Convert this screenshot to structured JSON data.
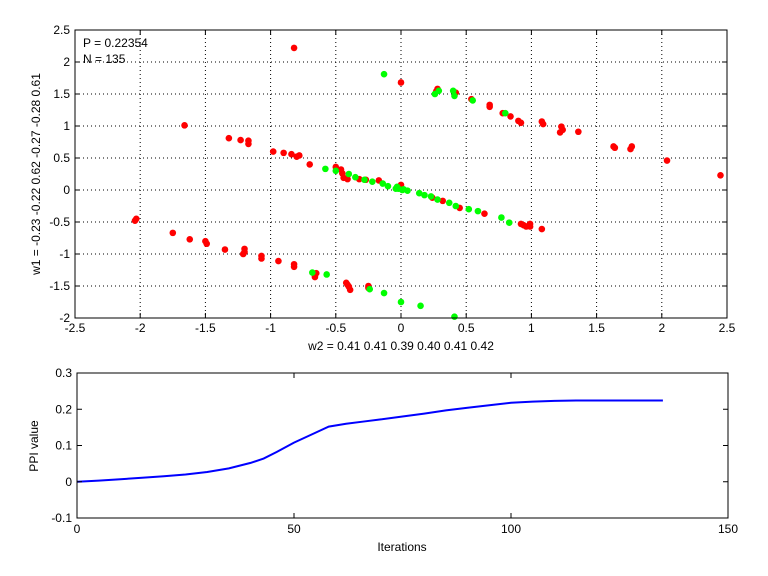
{
  "chart_data": [
    {
      "type": "scatter",
      "title": "",
      "annotations": [
        "P = 0.22354",
        "N = 135"
      ],
      "xlabel": "w2 = 0.41  0.41  0.39  0.40  0.41  0.42",
      "ylabel": "w1 = -0.23  -0.22  0.62  -0.27  -0.28  0.61",
      "xlim": [
        -2.5,
        2.5
      ],
      "ylim": [
        -2,
        2.5
      ],
      "xticks": [
        -2.5,
        -2,
        -1.5,
        -1,
        -0.5,
        0,
        0.5,
        1,
        1.5,
        2,
        2.5
      ],
      "yticks": [
        -2,
        -1.5,
        -1,
        -0.5,
        0,
        0.5,
        1,
        1.5,
        2,
        2.5
      ],
      "xtick_labels": [
        "-2.5",
        "-2",
        "-1.5",
        "-1",
        "-0.5",
        "0",
        "0.5",
        "1",
        "1.5",
        "2",
        "2.5"
      ],
      "ytick_labels": [
        "-2",
        "-1.5",
        "-1",
        "-0.5",
        "0",
        "0.5",
        "1",
        "1.5",
        "2",
        "2.5"
      ],
      "grid": true,
      "series": [
        {
          "name": "red",
          "color": "#ff0000",
          "points": [
            [
              -0.82,
              2.22
            ],
            [
              -1.66,
              1.01
            ],
            [
              0.0,
              1.68
            ],
            [
              0.28,
              1.58
            ],
            [
              0.27,
              1.54
            ],
            [
              0.42,
              1.52
            ],
            [
              0.54,
              1.42
            ],
            [
              0.68,
              1.33
            ],
            [
              0.68,
              1.3
            ],
            [
              0.78,
              1.2
            ],
            [
              0.84,
              1.15
            ],
            [
              0.9,
              1.08
            ],
            [
              0.92,
              1.05
            ],
            [
              1.08,
              1.07
            ],
            [
              1.09,
              1.03
            ],
            [
              1.23,
              0.99
            ],
            [
              1.24,
              0.94
            ],
            [
              1.22,
              0.9
            ],
            [
              1.36,
              0.91
            ],
            [
              1.63,
              0.68
            ],
            [
              1.64,
              0.66
            ],
            [
              1.77,
              0.68
            ],
            [
              1.76,
              0.64
            ],
            [
              2.04,
              0.46
            ],
            [
              2.45,
              0.23
            ],
            [
              -1.32,
              0.81
            ],
            [
              -1.23,
              0.78
            ],
            [
              -1.17,
              0.77
            ],
            [
              -1.17,
              0.72
            ],
            [
              -0.98,
              0.6
            ],
            [
              -0.9,
              0.58
            ],
            [
              -0.84,
              0.56
            ],
            [
              -0.78,
              0.54
            ],
            [
              -0.8,
              0.52
            ],
            [
              -0.7,
              0.4
            ],
            [
              -0.5,
              0.36
            ],
            [
              -0.46,
              0.32
            ],
            [
              -0.45,
              0.26
            ],
            [
              -0.44,
              0.19
            ],
            [
              -0.41,
              0.17
            ],
            [
              -0.32,
              0.17
            ],
            [
              -0.27,
              0.16
            ],
            [
              -0.17,
              0.15
            ],
            [
              0.0,
              0.08
            ],
            [
              0.24,
              -0.12
            ],
            [
              0.32,
              -0.17
            ],
            [
              0.45,
              -0.28
            ],
            [
              0.64,
              -0.37
            ],
            [
              0.92,
              -0.53
            ],
            [
              0.94,
              -0.55
            ],
            [
              0.99,
              -0.53
            ],
            [
              0.99,
              -0.57
            ],
            [
              1.08,
              -0.61
            ],
            [
              -2.03,
              -0.45
            ],
            [
              -2.04,
              -0.48
            ],
            [
              -1.75,
              -0.67
            ],
            [
              -1.62,
              -0.77
            ],
            [
              -1.5,
              -0.8
            ],
            [
              -1.49,
              -0.84
            ],
            [
              -1.35,
              -0.93
            ],
            [
              -1.2,
              -0.97
            ],
            [
              -1.2,
              -0.92
            ],
            [
              -1.21,
              -1.0
            ],
            [
              -1.07,
              -1.03
            ],
            [
              -1.07,
              -1.07
            ],
            [
              -0.94,
              -1.11
            ],
            [
              -0.82,
              -1.16
            ],
            [
              -0.82,
              -1.2
            ],
            [
              -0.65,
              -1.3
            ],
            [
              -0.66,
              -1.33
            ],
            [
              -0.42,
              -1.45
            ],
            [
              -0.41,
              -1.48
            ],
            [
              -0.4,
              -1.51
            ],
            [
              -0.39,
              -1.56
            ],
            [
              -0.25,
              -1.5
            ],
            [
              -0.25,
              -1.53
            ],
            [
              -0.66,
              -1.36
            ],
            [
              0.96,
              -0.57
            ]
          ]
        },
        {
          "name": "green",
          "color": "#00ff00",
          "points": [
            [
              -0.13,
              1.81
            ],
            [
              0.26,
              1.5
            ],
            [
              0.29,
              1.55
            ],
            [
              0.4,
              1.55
            ],
            [
              0.41,
              1.47
            ],
            [
              0.55,
              1.4
            ],
            [
              0.8,
              1.2
            ],
            [
              -0.58,
              0.33
            ],
            [
              -0.5,
              0.3
            ],
            [
              -0.4,
              0.25
            ],
            [
              -0.35,
              0.2
            ],
            [
              -0.28,
              0.16
            ],
            [
              -0.22,
              0.13
            ],
            [
              -0.14,
              0.1
            ],
            [
              -0.1,
              0.06
            ],
            [
              -0.03,
              0.05
            ],
            [
              -0.02,
              0.02
            ],
            [
              0.02,
              0.01
            ],
            [
              0.05,
              -0.01
            ],
            [
              0.14,
              -0.05
            ],
            [
              0.18,
              -0.08
            ],
            [
              0.23,
              -0.1
            ],
            [
              0.28,
              -0.15
            ],
            [
              0.37,
              -0.2
            ],
            [
              0.42,
              -0.25
            ],
            [
              0.52,
              -0.3
            ],
            [
              0.59,
              -0.33
            ],
            [
              0.77,
              -0.43
            ],
            [
              0.83,
              -0.51
            ],
            [
              -0.57,
              -1.32
            ],
            [
              -0.68,
              -1.29
            ],
            [
              -0.24,
              -1.55
            ],
            [
              -0.13,
              -1.61
            ],
            [
              0.0,
              -1.75
            ],
            [
              0.15,
              -1.81
            ],
            [
              0.41,
              -1.98
            ],
            [
              -0.04,
              0.02
            ],
            [
              0.01,
              0.0
            ]
          ]
        }
      ]
    },
    {
      "type": "line",
      "title": "",
      "xlabel": "Iterations",
      "ylabel": "PPI value",
      "xlim": [
        0,
        150
      ],
      "ylim": [
        -0.1,
        0.3
      ],
      "xticks": [
        0,
        50,
        100,
        150
      ],
      "yticks": [
        -0.1,
        0,
        0.1,
        0.2,
        0.3
      ],
      "xtick_labels": [
        "0",
        "50",
        "100",
        "150"
      ],
      "ytick_labels": [
        "-0.1",
        "0",
        "0.1",
        "0.2",
        "0.3"
      ],
      "grid": false,
      "series": [
        {
          "name": "PPI",
          "color": "#0000ff",
          "x": [
            0,
            5,
            10,
            15,
            20,
            25,
            30,
            35,
            40,
            43,
            46,
            50,
            54,
            58,
            62,
            66,
            70,
            75,
            80,
            85,
            90,
            95,
            100,
            105,
            110,
            115,
            120,
            125,
            130,
            135
          ],
          "y": [
            0,
            0.003,
            0.007,
            0.011,
            0.015,
            0.02,
            0.027,
            0.037,
            0.052,
            0.064,
            0.082,
            0.108,
            0.13,
            0.152,
            0.16,
            0.166,
            0.172,
            0.18,
            0.188,
            0.197,
            0.204,
            0.211,
            0.218,
            0.221,
            0.223,
            0.224,
            0.224,
            0.224,
            0.224,
            0.224
          ]
        }
      ]
    }
  ]
}
